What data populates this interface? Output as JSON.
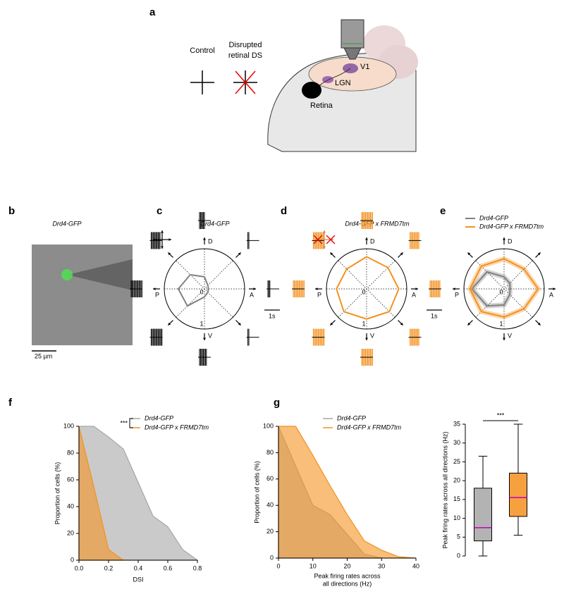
{
  "panel_labels": [
    "a",
    "b",
    "c",
    "d",
    "e",
    "f",
    "g"
  ],
  "panel_a": {
    "control": "Control",
    "disrupted": [
      "Disrupted",
      "retinal DS"
    ],
    "regions": {
      "v1": "V1",
      "lgn": "LGN",
      "retina": "Retina"
    }
  },
  "panel_b": {
    "title": "Drd4-GFP",
    "scale_bar": "25 µm"
  },
  "chart_data": [
    {
      "type": "polar",
      "title": "Drd4-GFP",
      "axis_labels": [
        "A",
        "D",
        "P",
        "V"
      ],
      "rlim": [
        0,
        1
      ],
      "rticks": [
        0,
        1
      ],
      "scale_bar": "1s",
      "color": "#808080",
      "values": [
        0.1,
        0.12,
        0.3,
        0.5,
        0.65,
        0.6,
        0.2,
        0.12
      ]
    },
    {
      "type": "polar",
      "title": "Drd4-GFP x FRMD7tm",
      "axis_labels": [
        "A",
        "D",
        "P",
        "V"
      ],
      "rlim": [
        0,
        1
      ],
      "rticks": [
        0,
        1
      ],
      "scale_bar": "1s",
      "color": "#f39221",
      "values": [
        0.8,
        0.75,
        0.8,
        0.7,
        0.75,
        0.8,
        0.75,
        0.8
      ]
    },
    {
      "type": "polar",
      "axis_labels": [
        "A",
        "D",
        "P",
        "V"
      ],
      "rlim": [
        0,
        1
      ],
      "rticks": [
        0,
        1
      ],
      "series": [
        {
          "name": "Drd4-GFP",
          "color": "#808080",
          "values": [
            0.15,
            0.2,
            0.3,
            0.6,
            0.8,
            0.6,
            0.4,
            0.2
          ]
        },
        {
          "name": "Drd4-GFP x FRMD7tm",
          "color": "#f39221",
          "values": [
            0.85,
            0.7,
            0.75,
            0.8,
            0.85,
            0.8,
            0.7,
            0.7
          ]
        }
      ]
    },
    {
      "type": "area",
      "annotation": "***",
      "xlabel": "DSI",
      "ylabel": "Proportion of cells (%)",
      "xlim": [
        0,
        0.8
      ],
      "xticks": [
        {
          "value": 0,
          "label": "0.0"
        },
        0.2,
        0.4,
        0.6,
        0.8
      ],
      "ylim": [
        0,
        100
      ],
      "yticks": [
        0,
        20,
        40,
        60,
        80,
        100
      ],
      "series": [
        {
          "name": "Drd4-GFP",
          "color": "#a6a6a6",
          "x": [
            0,
            0.1,
            0.2,
            0.3,
            0.4,
            0.5,
            0.6,
            0.7,
            0.8
          ],
          "values": [
            100,
            100,
            92,
            83,
            58,
            33,
            25,
            8,
            0
          ]
        },
        {
          "name": "Drd4-GFP x FRMD7tm",
          "color": "#f39221",
          "x": [
            0,
            0.1,
            0.2,
            0.3
          ],
          "values": [
            100,
            55,
            8,
            0
          ]
        }
      ]
    },
    {
      "type": "area",
      "xlabel": [
        "Peak firing rates across",
        "all directions (Hz)"
      ],
      "ylabel": "Proportion of cells (%)",
      "xlim": [
        0,
        40
      ],
      "xticks": [
        0,
        10,
        20,
        30,
        40
      ],
      "ylim": [
        0,
        100
      ],
      "yticks": [
        0,
        20,
        40,
        60,
        80,
        100
      ],
      "series": [
        {
          "name": "Drd4-GFP",
          "color": "#a6a6a6",
          "x": [
            0,
            5,
            10,
            15,
            20,
            25,
            30
          ],
          "values": [
            100,
            70,
            40,
            33,
            18,
            3,
            0
          ]
        },
        {
          "name": "Drd4-GFP x FRMD7tm",
          "color": "#f39221",
          "x": [
            0,
            5,
            10,
            15,
            20,
            25,
            30,
            35,
            40
          ],
          "values": [
            100,
            100,
            78,
            55,
            33,
            13,
            6,
            1,
            0
          ]
        }
      ]
    },
    {
      "type": "box",
      "annotation": "***",
      "ylabel": "Peak firing rates across all directions (Hz)",
      "ylim": [
        0,
        35
      ],
      "yticks": [
        0,
        5,
        10,
        15,
        20,
        25,
        30,
        35
      ],
      "median_color": "#c000c0",
      "boxes": [
        {
          "color": "#b3b3b3",
          "min": 0,
          "q1": 4,
          "median": 7.5,
          "q3": 18,
          "max": 26.5
        },
        {
          "color": "#f7a040",
          "min": 5.5,
          "q1": 10.5,
          "median": 15.5,
          "q3": 22,
          "max": 35
        }
      ]
    }
  ]
}
